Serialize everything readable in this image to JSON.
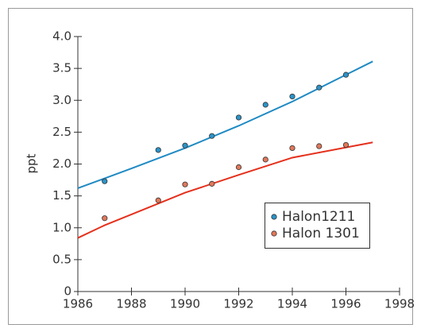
{
  "chart_data": {
    "type": "scatter",
    "ylabel": "ppt",
    "xlim": [
      1986,
      1998
    ],
    "xticks": [
      1986,
      1988,
      1990,
      1992,
      1994,
      1996,
      1998
    ],
    "ylim": [
      0,
      4
    ],
    "yticks": [
      0,
      0.5,
      {
        "value": 1,
        "label": "1.0"
      },
      1.5,
      {
        "value": 2,
        "label": "2.0"
      },
      2.5,
      {
        "value": 3,
        "label": "3.0"
      },
      3.5,
      {
        "value": 4,
        "label": "4.0"
      }
    ],
    "legend": "lower right",
    "series": [
      {
        "name": "Halon1211",
        "color": "#1f8ac4",
        "marker_color": "#2b93c8",
        "x": [
          1987,
          1989,
          1990,
          1991,
          1992,
          1993,
          1994,
          1995,
          1996
        ],
        "values": [
          1.73,
          2.22,
          2.29,
          2.44,
          2.73,
          2.93,
          3.06,
          3.2,
          3.4
        ],
        "fit_x": [
          1986,
          1988,
          1990,
          1992,
          1994,
          1996,
          1997
        ],
        "fit_values": [
          1.62,
          1.93,
          2.25,
          2.6,
          2.98,
          3.4,
          3.61
        ]
      },
      {
        "name": "Halon 1301",
        "color": "#e5301c",
        "marker_color": "#e0785a",
        "x": [
          1987,
          1989,
          1990,
          1991,
          1992,
          1993,
          1994,
          1995,
          1996
        ],
        "values": [
          1.15,
          1.43,
          1.68,
          1.69,
          1.95,
          2.07,
          2.25,
          2.28,
          2.3
        ],
        "fit_x": [
          1986,
          1987,
          1988,
          1990,
          1992,
          1994,
          1996,
          1997
        ],
        "fit_values": [
          0.84,
          1.04,
          1.21,
          1.55,
          1.83,
          2.1,
          2.26,
          2.34
        ]
      }
    ]
  }
}
